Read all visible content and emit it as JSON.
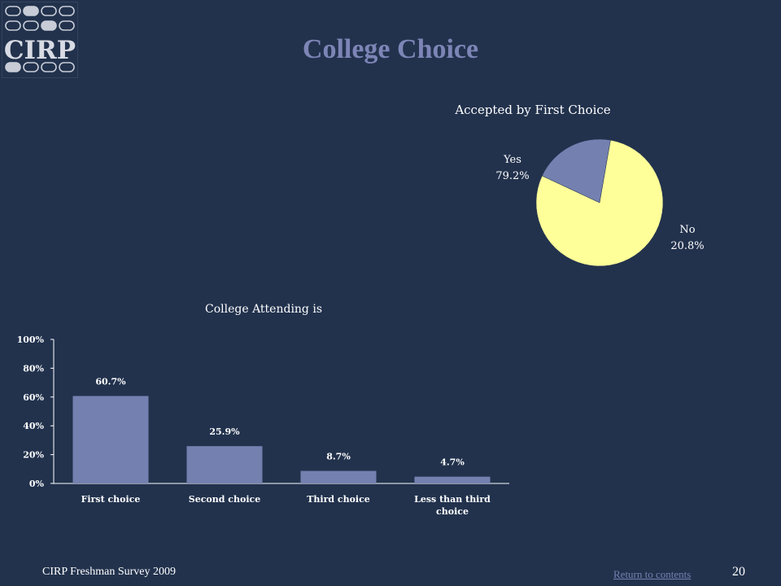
{
  "logo": {
    "text": "CIRP"
  },
  "slide": {
    "title": "College Choice"
  },
  "chart_data": [
    {
      "type": "pie",
      "title": "Accepted by First Choice",
      "slices": [
        {
          "label": "Yes",
          "value": 79.2,
          "value_label": "79.2%",
          "color": "#ffff99"
        },
        {
          "label": "No",
          "value": 20.8,
          "value_label": "20.8%",
          "color": "#7481b0"
        }
      ]
    },
    {
      "type": "bar",
      "title": "College Attending is",
      "categories": [
        "First choice",
        "Second choice",
        "Third choice",
        "Less than third choice"
      ],
      "category_lines": [
        [
          "First choice"
        ],
        [
          "Second choice"
        ],
        [
          "Third choice"
        ],
        [
          "Less than third",
          "choice"
        ]
      ],
      "values": [
        60.7,
        25.9,
        8.7,
        4.7
      ],
      "value_labels": [
        "60.7%",
        "25.9%",
        "8.7%",
        "4.7%"
      ],
      "ylim": [
        0,
        100
      ],
      "yticks": [
        "0%",
        "20%",
        "40%",
        "60%",
        "80%",
        "100%"
      ],
      "xlabel": "",
      "ylabel": "",
      "grid": false,
      "bar_color": "#7481b0"
    }
  ],
  "footer": {
    "survey": "CIRP Freshman Survey 2009",
    "return_link": "Return to contents",
    "page_number": "20"
  }
}
